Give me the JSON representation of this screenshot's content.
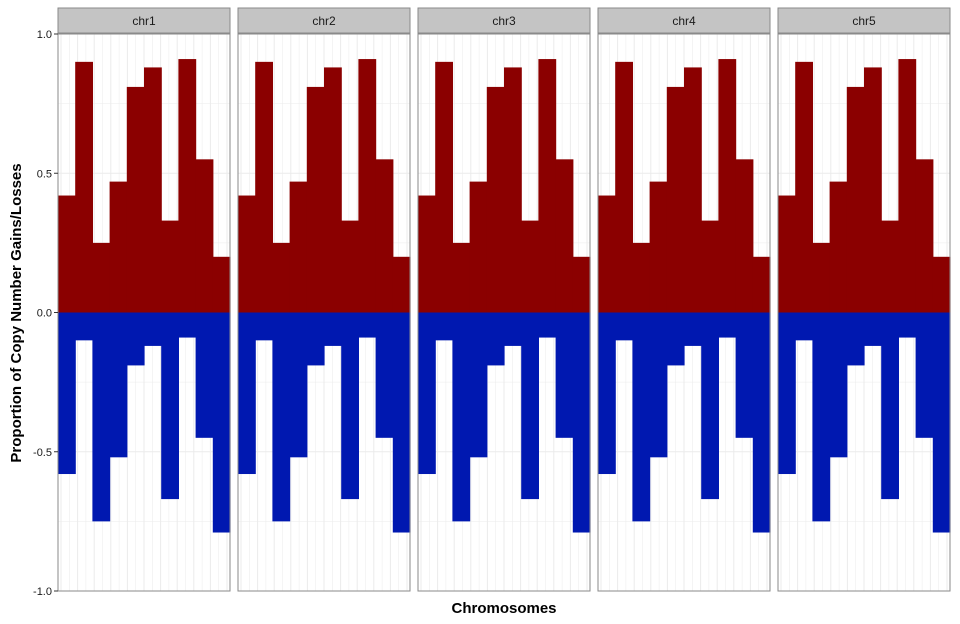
{
  "chart_data": {
    "type": "bar",
    "xlabel": "Chromosomes",
    "ylabel": "Proportion of Copy Number Gains/Losses",
    "ylim": [
      -1.0,
      1.0
    ],
    "yticks": [
      1.0,
      0.5,
      0.0,
      -0.5,
      -1.0
    ],
    "ytick_labels": [
      "1.0",
      "0.5",
      "0.0",
      "-0.5",
      "-1.0"
    ],
    "grid": true,
    "facets": [
      "chr1",
      "chr2",
      "chr3",
      "chr4",
      "chr5"
    ],
    "bins_per_facet": 10,
    "series": [
      {
        "name": "gain",
        "color": "#8b0000",
        "values": [
          0.42,
          0.9,
          0.25,
          0.47,
          0.81,
          0.88,
          0.33,
          0.91,
          0.55,
          0.2
        ]
      },
      {
        "name": "loss",
        "color": "#0018b0",
        "values": [
          -0.58,
          -0.1,
          -0.75,
          -0.52,
          -0.19,
          -0.12,
          -0.67,
          -0.09,
          -0.45,
          -0.79
        ]
      }
    ]
  }
}
